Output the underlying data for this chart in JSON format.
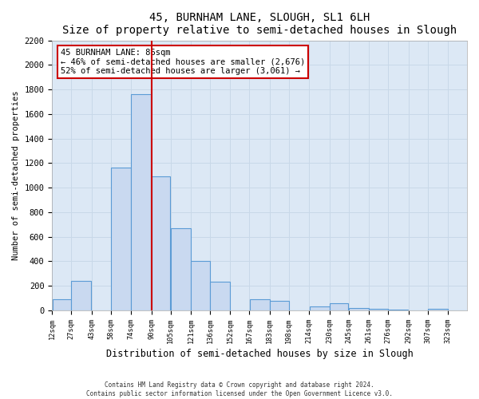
{
  "title": "45, BURNHAM LANE, SLOUGH, SL1 6LH",
  "subtitle": "Size of property relative to semi-detached houses in Slough",
  "xlabel": "Distribution of semi-detached houses by size in Slough",
  "ylabel": "Number of semi-detached properties",
  "bar_edges": [
    12,
    27,
    43,
    58,
    74,
    90,
    105,
    121,
    136,
    152,
    167,
    183,
    198,
    214,
    230,
    245,
    261,
    276,
    292,
    307,
    323
  ],
  "bar_heights": [
    90,
    240,
    0,
    1160,
    1760,
    1090,
    670,
    400,
    230,
    0,
    90,
    80,
    0,
    30,
    55,
    20,
    15,
    5,
    0,
    10,
    0
  ],
  "bar_color": "#c9d9f0",
  "bar_edgecolor": "#5b9bd5",
  "x_tick_labels": [
    "12sqm",
    "27sqm",
    "43sqm",
    "58sqm",
    "74sqm",
    "90sqm",
    "105sqm",
    "121sqm",
    "136sqm",
    "152sqm",
    "167sqm",
    "183sqm",
    "198sqm",
    "214sqm",
    "230sqm",
    "245sqm",
    "261sqm",
    "276sqm",
    "292sqm",
    "307sqm",
    "323sqm"
  ],
  "x_tick_positions": [
    12,
    27,
    43,
    58,
    74,
    90,
    105,
    121,
    136,
    152,
    167,
    183,
    198,
    214,
    230,
    245,
    261,
    276,
    292,
    307,
    323
  ],
  "ylim": [
    0,
    2200
  ],
  "xlim": [
    12,
    338
  ],
  "yticks": [
    0,
    200,
    400,
    600,
    800,
    1000,
    1200,
    1400,
    1600,
    1800,
    2000,
    2200
  ],
  "property_line_x": 90,
  "property_line_color": "#cc0000",
  "annotation_title": "45 BURNHAM LANE: 86sqm",
  "annotation_line1": "← 46% of semi-detached houses are smaller (2,676)",
  "annotation_line2": "52% of semi-detached houses are larger (3,061) →",
  "annotation_box_facecolor": "#ffffff",
  "annotation_box_edgecolor": "#cc0000",
  "grid_color": "#c8d8e8",
  "plot_bg_color": "#dce8f5",
  "fig_bg_color": "#ffffff",
  "footer_line1": "Contains HM Land Registry data © Crown copyright and database right 2024.",
  "footer_line2": "Contains public sector information licensed under the Open Government Licence v3.0."
}
